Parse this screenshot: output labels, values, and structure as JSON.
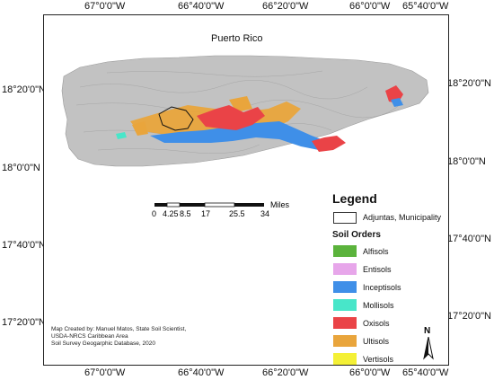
{
  "map": {
    "title": "Puerto Rico",
    "lon_ticks": [
      "67°0'0\"W",
      "66°40'0\"W",
      "66°20'0\"W",
      "66°0'0\"W",
      "65°40'0\"W"
    ],
    "lat_ticks_left": [
      "18°20'0\"N",
      "18°0'0\"N",
      "17°40'0\"N",
      "17°20'0\"N"
    ],
    "lat_ticks_right": [
      "18°20'0\"N",
      "18°0'0\"N",
      "17°40'0\"N",
      "17°20'0\"N"
    ]
  },
  "scale_bar": {
    "labels": [
      "0",
      "4.25",
      "8.5",
      "17",
      "25.5",
      "34"
    ],
    "unit": "Miles"
  },
  "legend": {
    "title": "Legend",
    "municipality_label": "Adjuntas, Municipality",
    "soil_orders_title": "Soil Orders",
    "items": [
      {
        "label": "Alfisols",
        "color": "#5bb33c"
      },
      {
        "label": "Entisols",
        "color": "#e7a6ea"
      },
      {
        "label": "Inceptisols",
        "color": "#3f8fe8"
      },
      {
        "label": "Mollisols",
        "color": "#48e6c9"
      },
      {
        "label": "Oxisols",
        "color": "#ea4347"
      },
      {
        "label": "Ultisols",
        "color": "#e9a53c"
      },
      {
        "label": "Vertisols",
        "color": "#f4f036"
      }
    ]
  },
  "north_arrow": {
    "label": "N"
  },
  "credits": {
    "lines": [
      "Map Created by: Manuel Matos, State Soil Scientist,",
      "USDA-NRCS Caribbean Area",
      "Soil Survey Geogarphic Database, 2020"
    ]
  },
  "colors": {
    "island_relief": "#bdbdbd",
    "frame": "#222222"
  }
}
